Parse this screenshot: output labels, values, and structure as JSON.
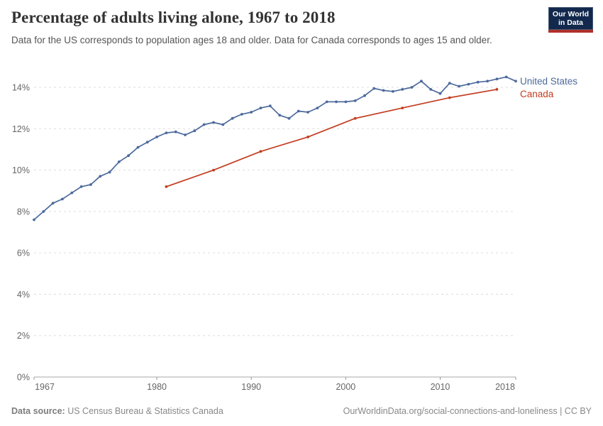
{
  "header": {
    "title": "Percentage of adults living alone, 1967 to 2018",
    "subtitle": "Data for the US corresponds to population ages 18 and older. Data for Canada corresponds to ages 15 and older.",
    "logo": {
      "line1": "Our World",
      "line2": "in Data",
      "bg_color": "#12294d",
      "accent_color": "#b0302a"
    }
  },
  "chart_data": {
    "type": "line",
    "title": "Percentage of adults living alone, 1967 to 2018",
    "xlabel": "",
    "ylabel": "",
    "xlim": [
      1967,
      2018
    ],
    "ylim": [
      0,
      14
    ],
    "x_ticks": [
      1967,
      1980,
      1990,
      2000,
      2010,
      2018
    ],
    "y_ticks": [
      "0%",
      "2%",
      "4%",
      "6%",
      "8%",
      "10%",
      "12%",
      "14%"
    ],
    "grid": "horizontal dashed",
    "legend_position": "right of line ends",
    "series": [
      {
        "name": "United States",
        "color": "#4C6A9C",
        "x": [
          1967,
          1968,
          1969,
          1970,
          1971,
          1972,
          1973,
          1974,
          1975,
          1976,
          1977,
          1978,
          1979,
          1980,
          1981,
          1982,
          1983,
          1984,
          1985,
          1986,
          1987,
          1988,
          1989,
          1990,
          1991,
          1992,
          1993,
          1994,
          1995,
          1996,
          1997,
          1998,
          1999,
          2000,
          2001,
          2002,
          2003,
          2004,
          2005,
          2006,
          2007,
          2008,
          2009,
          2010,
          2011,
          2012,
          2013,
          2014,
          2015,
          2016,
          2017,
          2018
        ],
        "values": [
          7.6,
          8.0,
          8.4,
          8.6,
          8.9,
          9.2,
          9.3,
          9.7,
          9.9,
          10.4,
          10.7,
          11.1,
          11.35,
          11.6,
          11.8,
          11.85,
          11.7,
          11.9,
          12.2,
          12.3,
          12.2,
          12.5,
          12.7,
          12.8,
          13.0,
          13.1,
          12.65,
          12.5,
          12.85,
          12.8,
          13.0,
          13.3,
          13.3,
          13.3,
          13.35,
          13.6,
          13.95,
          13.85,
          13.8,
          13.9,
          14.0,
          14.3,
          13.9,
          13.7,
          14.2,
          14.05,
          14.15,
          14.25,
          14.3,
          14.4,
          14.5,
          14.3
        ]
      },
      {
        "name": "Canada",
        "color": "#C23D20",
        "x": [
          1981,
          1986,
          1991,
          1996,
          2001,
          2006,
          2011,
          2016
        ],
        "values": [
          9.2,
          10.0,
          10.9,
          11.6,
          12.5,
          13.0,
          13.5,
          13.9
        ]
      }
    ]
  },
  "footer": {
    "source_label": "Data source:",
    "source_value": "US Census Bureau & Statistics Canada",
    "attribution": "OurWorldinData.org/social-connections-and-loneliness | CC BY"
  }
}
